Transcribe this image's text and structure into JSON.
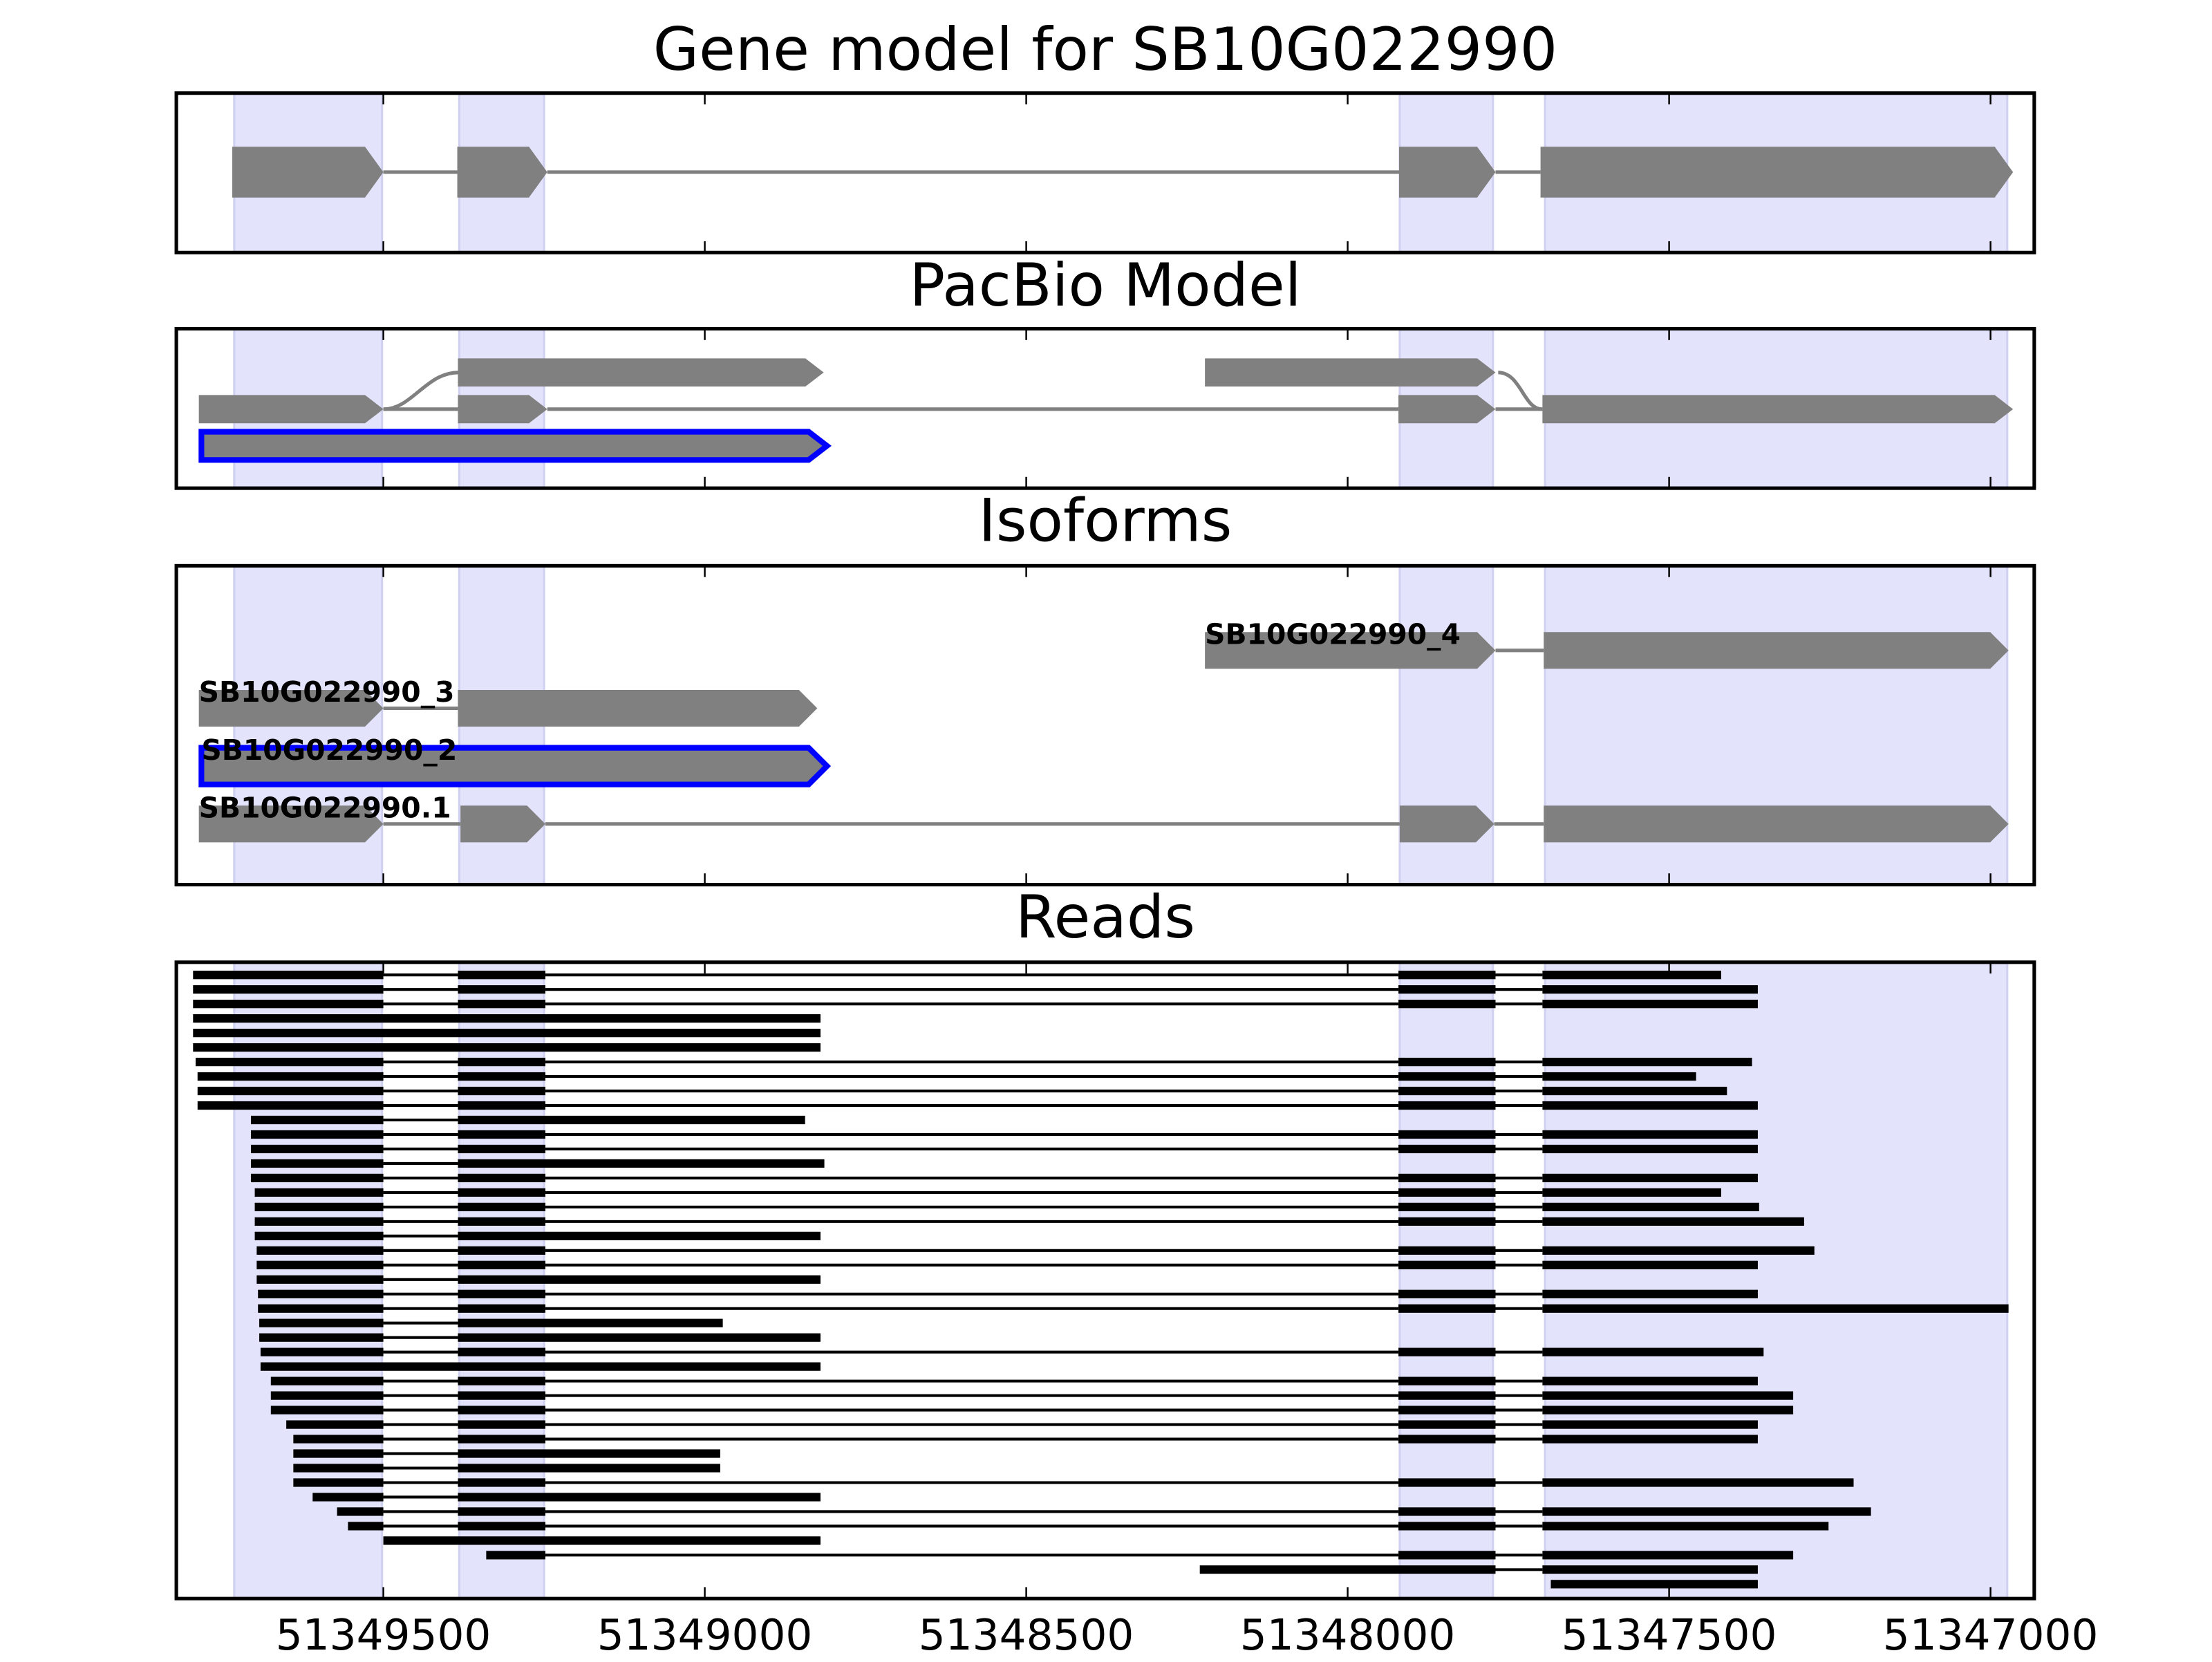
{
  "highlights": [
    [
      51349732,
      51349502
    ],
    [
      51349382,
      51349250
    ],
    [
      51347919,
      51347774
    ],
    [
      51347693,
      51346974
    ]
  ],
  "chart_data": [
    {
      "type": "track",
      "title": "Gene model for SB10G022990",
      "color": "#808080",
      "xlim": [
        51349822,
        51346932
      ],
      "xticks": [
        51349500,
        51349000,
        51348500,
        51348000,
        51347500,
        51347000
      ],
      "xtick_labels": false,
      "rows": [
        {
          "blocks": [
            [
              51349735,
              51349500
            ],
            [
              51349385,
              51349245
            ],
            [
              51347920,
              51347770
            ],
            [
              51347700,
              51346965
            ]
          ]
        }
      ]
    },
    {
      "type": "track",
      "title": "PacBio Model",
      "color": "#808080",
      "xlim": [
        51349822,
        51346932
      ],
      "xticks": [
        51349500,
        51349000,
        51348500,
        51348000,
        51347500,
        51347000
      ],
      "xtick_labels": false,
      "rows": [
        {
          "blocks": [
            [
              51349384,
              51348815
            ],
            [
              51348222,
              51347770
            ]
          ],
          "introns": false
        },
        {
          "blocks": [
            [
              51349787,
              51349500
            ],
            [
              51349384,
              51349245
            ],
            [
              51347921,
              51347770
            ],
            [
              51347697,
              51346965
            ]
          ]
        },
        {
          "blocks": [
            [
              51349783,
              51348810
            ]
          ],
          "outline": "#0000ff"
        }
      ]
    },
    {
      "type": "track",
      "title": "Isoforms",
      "color": "#808080",
      "xlim": [
        51349822,
        51346932
      ],
      "xticks": [
        51349500,
        51349000,
        51348500,
        51348000,
        51347500,
        51347000
      ],
      "xtick_labels": false,
      "rows": [
        {
          "label": "SB10G022990_4",
          "blocks": [
            [
              51348222,
              51347770
            ],
            [
              51347695,
              51346972
            ]
          ]
        },
        {
          "label": "SB10G022990_3",
          "blocks": [
            [
              51349787,
              51349500
            ],
            [
              51349384,
              51348825
            ]
          ]
        },
        {
          "label": "SB10G022990_2",
          "blocks": [
            [
              51349783,
              51348810
            ]
          ],
          "outline": "#0000ff"
        },
        {
          "label": "SB10G022990.1",
          "blocks": [
            [
              51349787,
              51349500
            ],
            [
              51349380,
              51349248
            ],
            [
              51347919,
              51347772
            ],
            [
              51347695,
              51346972
            ]
          ]
        }
      ]
    },
    {
      "type": "reads",
      "title": "Reads",
      "color": "#000000",
      "xlim": [
        51349822,
        51346932
      ],
      "xticks": [
        51349500,
        51349000,
        51348500,
        51348000,
        51347500,
        51347000
      ],
      "xtick_labels": true,
      "rows": [
        {
          "blocks": [
            [
              51349796,
              51349500
            ],
            [
              51349384,
              51349248
            ],
            [
              51347921,
              51347770
            ],
            [
              51347697,
              51347419
            ]
          ]
        },
        {
          "blocks": [
            [
              51349796,
              51349500
            ],
            [
              51349384,
              51349248
            ],
            [
              51347921,
              51347770
            ],
            [
              51347697,
              51347362
            ]
          ]
        },
        {
          "blocks": [
            [
              51349796,
              51349500
            ],
            [
              51349384,
              51349248
            ],
            [
              51347921,
              51347770
            ],
            [
              51347697,
              51347362
            ]
          ]
        },
        {
          "blocks": [
            [
              51349796,
              51348820
            ]
          ]
        },
        {
          "blocks": [
            [
              51349796,
              51348820
            ]
          ]
        },
        {
          "blocks": [
            [
              51349796,
              51348820
            ]
          ]
        },
        {
          "blocks": [
            [
              51349792,
              51349500
            ],
            [
              51349384,
              51349248
            ],
            [
              51347921,
              51347770
            ],
            [
              51347697,
              51347371
            ]
          ]
        },
        {
          "blocks": [
            [
              51349789,
              51349500
            ],
            [
              51349384,
              51349248
            ],
            [
              51347921,
              51347770
            ],
            [
              51347697,
              51347458
            ]
          ]
        },
        {
          "blocks": [
            [
              51349789,
              51349500
            ],
            [
              51349384,
              51349248
            ],
            [
              51347921,
              51347770
            ],
            [
              51347697,
              51347410
            ]
          ]
        },
        {
          "blocks": [
            [
              51349789,
              51349500
            ],
            [
              51349384,
              51349248
            ],
            [
              51347921,
              51347770
            ],
            [
              51347697,
              51347362
            ]
          ]
        },
        {
          "blocks": [
            [
              51349706,
              51349500
            ],
            [
              51349384,
              51348844
            ]
          ]
        },
        {
          "blocks": [
            [
              51349706,
              51349500
            ],
            [
              51349384,
              51349248
            ],
            [
              51347921,
              51347770
            ],
            [
              51347697,
              51347362
            ]
          ]
        },
        {
          "blocks": [
            [
              51349706,
              51349500
            ],
            [
              51349384,
              51349248
            ],
            [
              51347921,
              51347770
            ],
            [
              51347697,
              51347362
            ]
          ]
        },
        {
          "blocks": [
            [
              51349706,
              51349500
            ],
            [
              51349384,
              51348814
            ]
          ]
        },
        {
          "blocks": [
            [
              51349706,
              51349500
            ],
            [
              51349384,
              51349248
            ],
            [
              51347921,
              51347770
            ],
            [
              51347697,
              51347362
            ]
          ]
        },
        {
          "blocks": [
            [
              51349700,
              51349500
            ],
            [
              51349384,
              51349248
            ],
            [
              51347921,
              51347770
            ],
            [
              51347697,
              51347419
            ]
          ]
        },
        {
          "blocks": [
            [
              51349700,
              51349500
            ],
            [
              51349384,
              51349248
            ],
            [
              51347921,
              51347770
            ],
            [
              51347697,
              51347360
            ]
          ]
        },
        {
          "blocks": [
            [
              51349700,
              51349500
            ],
            [
              51349384,
              51349248
            ],
            [
              51347921,
              51347770
            ],
            [
              51347697,
              51347290
            ]
          ]
        },
        {
          "blocks": [
            [
              51349700,
              51349500
            ],
            [
              51349384,
              51348820
            ]
          ]
        },
        {
          "blocks": [
            [
              51349697,
              51349500
            ],
            [
              51349384,
              51349248
            ],
            [
              51347921,
              51347770
            ],
            [
              51347697,
              51347274
            ]
          ]
        },
        {
          "blocks": [
            [
              51349697,
              51349500
            ],
            [
              51349384,
              51349248
            ],
            [
              51347921,
              51347770
            ],
            [
              51347697,
              51347362
            ]
          ]
        },
        {
          "blocks": [
            [
              51349697,
              51349500
            ],
            [
              51349384,
              51348820
            ]
          ]
        },
        {
          "blocks": [
            [
              51349695,
              51349500
            ],
            [
              51349384,
              51349248
            ],
            [
              51347921,
              51347770
            ],
            [
              51347697,
              51347362
            ]
          ]
        },
        {
          "blocks": [
            [
              51349695,
              51349500
            ],
            [
              51349384,
              51349248
            ],
            [
              51347921,
              51347770
            ],
            [
              51347697,
              51346972
            ]
          ]
        },
        {
          "blocks": [
            [
              51349693,
              51349500
            ],
            [
              51349384,
              51348972
            ]
          ]
        },
        {
          "blocks": [
            [
              51349693,
              51349500
            ],
            [
              51349384,
              51348820
            ]
          ]
        },
        {
          "blocks": [
            [
              51349691,
              51349500
            ],
            [
              51349384,
              51349248
            ],
            [
              51347921,
              51347770
            ],
            [
              51347697,
              51347353
            ]
          ]
        },
        {
          "blocks": [
            [
              51349691,
              51348820
            ]
          ]
        },
        {
          "blocks": [
            [
              51349675,
              51349500
            ],
            [
              51349384,
              51349248
            ],
            [
              51347921,
              51347770
            ],
            [
              51347697,
              51347362
            ]
          ]
        },
        {
          "blocks": [
            [
              51349675,
              51349500
            ],
            [
              51349384,
              51349248
            ],
            [
              51347921,
              51347770
            ],
            [
              51347697,
              51347307
            ]
          ]
        },
        {
          "blocks": [
            [
              51349675,
              51349500
            ],
            [
              51349384,
              51349248
            ],
            [
              51347921,
              51347770
            ],
            [
              51347697,
              51347307
            ]
          ]
        },
        {
          "blocks": [
            [
              51349651,
              51349500
            ],
            [
              51349384,
              51349248
            ],
            [
              51347921,
              51347770
            ],
            [
              51347697,
              51347362
            ]
          ]
        },
        {
          "blocks": [
            [
              51349640,
              51349500
            ],
            [
              51349384,
              51349248
            ],
            [
              51347921,
              51347770
            ],
            [
              51347697,
              51347362
            ]
          ]
        },
        {
          "blocks": [
            [
              51349640,
              51349500
            ],
            [
              51349384,
              51348976
            ]
          ]
        },
        {
          "blocks": [
            [
              51349640,
              51349500
            ],
            [
              51349384,
              51348976
            ]
          ]
        },
        {
          "blocks": [
            [
              51349640,
              51349500
            ],
            [
              51349384,
              51349248
            ],
            [
              51347921,
              51347770
            ],
            [
              51347697,
              51347213
            ]
          ]
        },
        {
          "blocks": [
            [
              51349610,
              51349500
            ],
            [
              51349384,
              51348820
            ]
          ]
        },
        {
          "blocks": [
            [
              51349572,
              51349500
            ],
            [
              51349384,
              51349248
            ],
            [
              51347921,
              51347770
            ],
            [
              51347697,
              51347186
            ]
          ]
        },
        {
          "blocks": [
            [
              51349555,
              51349500
            ],
            [
              51349384,
              51349248
            ],
            [
              51347921,
              51347770
            ],
            [
              51347697,
              51347252
            ]
          ]
        },
        {
          "blocks": [
            [
              51349500,
              51348820
            ]
          ]
        },
        {
          "blocks": [
            [
              51349340,
              51349248
            ],
            [
              51347921,
              51347770
            ],
            [
              51347697,
              51347307
            ]
          ]
        },
        {
          "blocks": [
            [
              51348230,
              51347770
            ],
            [
              51347697,
              51347362
            ]
          ]
        },
        {
          "blocks": [
            [
              51347684,
              51347362
            ]
          ]
        }
      ]
    }
  ]
}
